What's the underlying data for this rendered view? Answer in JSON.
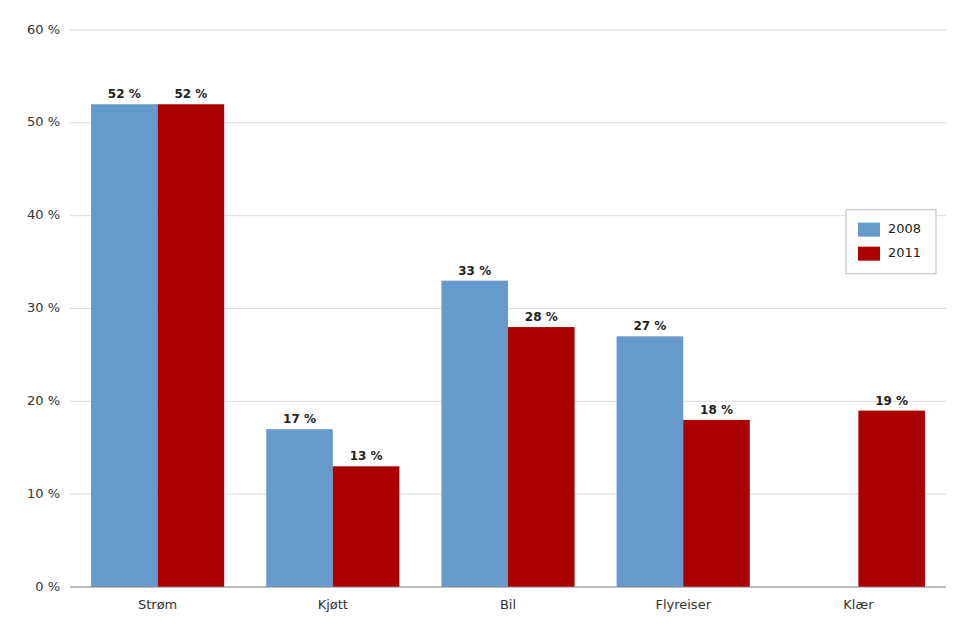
{
  "chart_data": {
    "type": "bar",
    "categories": [
      "Strøm",
      "Kjøtt",
      "Bil",
      "Flyreiser",
      "Klær"
    ],
    "series": [
      {
        "name": "2008",
        "color": "#6699CC",
        "values": [
          52,
          17,
          33,
          27,
          0
        ],
        "value_labels": [
          "52 %",
          "17 %",
          "33 %",
          "27 %",
          null
        ]
      },
      {
        "name": "2011",
        "color": "#AA0000",
        "values": [
          52,
          13,
          28,
          18,
          19
        ],
        "value_labels": [
          "52 %",
          "13 %",
          "28 %",
          "18 %",
          "19 %"
        ]
      }
    ],
    "ylim": [
      0,
      60
    ],
    "yticks": [
      {
        "value": 0,
        "label": "0 %"
      },
      {
        "value": 10,
        "label": "10 %"
      },
      {
        "value": 20,
        "label": "20 %"
      },
      {
        "value": 30,
        "label": "30 %"
      },
      {
        "value": 40,
        "label": "40 %"
      },
      {
        "value": 50,
        "label": "50 %"
      },
      {
        "value": 60,
        "label": "60 %"
      }
    ],
    "grid": true,
    "legend": "right",
    "data_labels": true
  }
}
